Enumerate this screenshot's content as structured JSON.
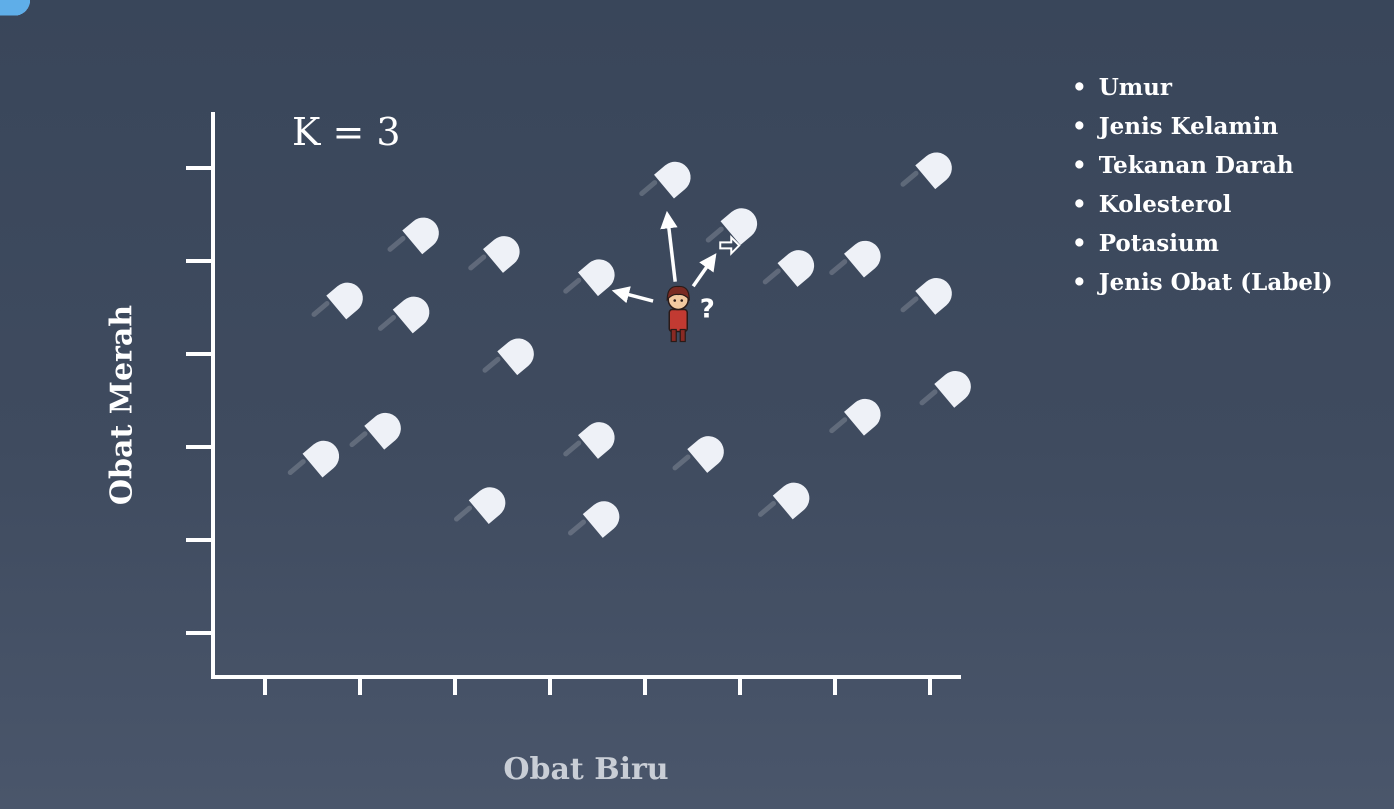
{
  "k_label": "K = 3",
  "y_axis_label": "Obat Merah",
  "x_axis_label": "Obat Biru",
  "features": [
    "Umur",
    "Jenis Kelamin",
    "Tekanan Darah",
    "Kolesterol",
    "Potasium",
    "Jenis Obat (Label)"
  ],
  "colors": {
    "background": "#3c485c",
    "axis": "#ffffff",
    "red_pill": "#e0474c",
    "blue_pill": "#5faee8",
    "pill_cap": "#eef1f7"
  },
  "icons": {
    "query_point": "person-icon",
    "unknown": "question-mark-icon",
    "arrow": "arrow-right-icon"
  },
  "chart_data": {
    "type": "scatter",
    "x_ticks": 8,
    "y_ticks": 6,
    "series": [
      {
        "name": "",
        "color": "red",
        "points": [
          [
            0.75,
            3.5
          ],
          [
            0.5,
            1.8
          ],
          [
            1.55,
            4.2
          ],
          [
            1.45,
            3.35
          ],
          [
            1.15,
            2.1
          ],
          [
            2.4,
            4.0
          ],
          [
            2.55,
            2.9
          ],
          [
            2.25,
            1.3
          ],
          [
            3.4,
            3.75
          ],
          [
            3.4,
            2.0
          ]
        ]
      },
      {
        "name": "",
        "color": "blue",
        "points": [
          [
            4.2,
            4.8
          ],
          [
            4.9,
            4.3
          ],
          [
            3.45,
            1.15
          ],
          [
            4.55,
            1.85
          ],
          [
            5.45,
            1.35
          ],
          [
            5.5,
            3.85
          ],
          [
            6.2,
            3.95
          ],
          [
            6.95,
            3.55
          ],
          [
            6.95,
            4.9
          ],
          [
            6.2,
            2.25
          ],
          [
            7.15,
            2.55
          ]
        ]
      }
    ],
    "query_point": [
      4.35,
      3.5
    ],
    "nearest_neighbors": [
      [
        3.4,
        3.75
      ],
      [
        4.2,
        4.8
      ],
      [
        4.9,
        4.3
      ]
    ]
  }
}
